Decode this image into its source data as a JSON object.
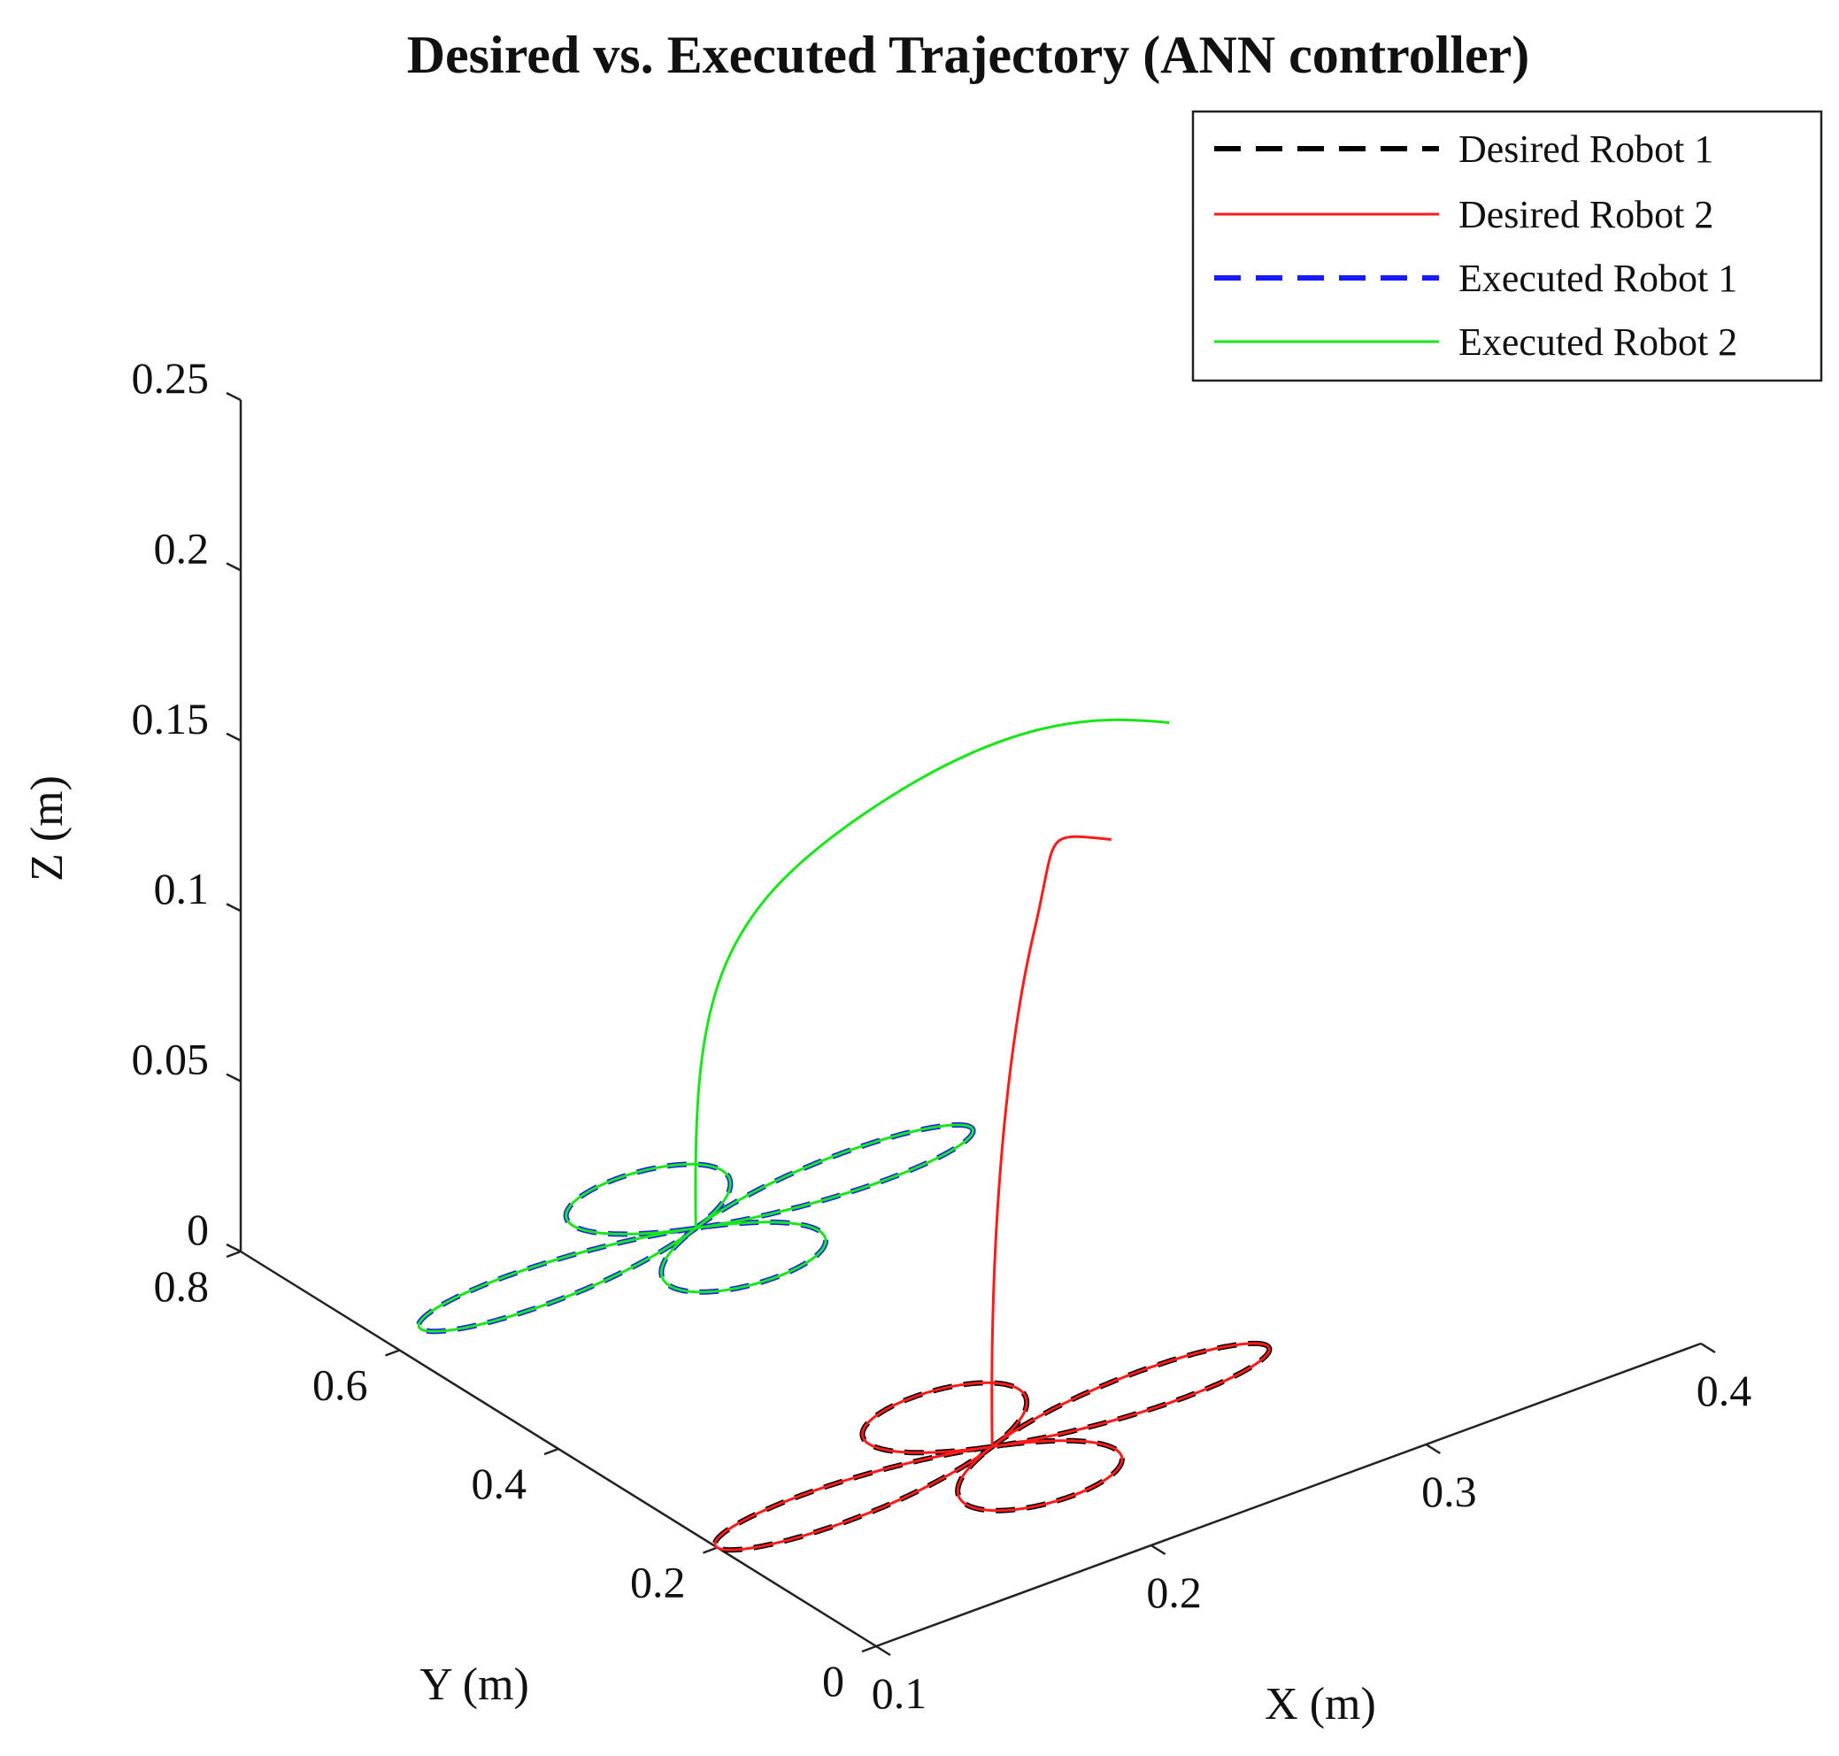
{
  "chart_data": {
    "type": "line3d",
    "title": "Desired vs. Executed Trajectory (ANN controller)",
    "xlabel": "X (m)",
    "ylabel": "Y (m)",
    "zlabel": "Z (m)",
    "xlim": [
      0.1,
      0.4
    ],
    "ylim": [
      0,
      0.8
    ],
    "zlim": [
      0,
      0.25
    ],
    "x_ticks": [
      "0.1",
      "0.2",
      "0.3",
      "0.4"
    ],
    "y_ticks": [
      "0",
      "0.2",
      "0.4",
      "0.6",
      "0.8"
    ],
    "z_ticks": [
      "0",
      "0.05",
      "0.1",
      "0.15",
      "0.2",
      "0.25"
    ],
    "grid": false,
    "legend_position": "top-right",
    "series": [
      {
        "name": "Desired Robot 1",
        "color": "#000000",
        "style": "dashed",
        "center": [
          0.2,
          0.2,
          0.0
        ],
        "petal_radius": 0.1,
        "lift": [
          0.0,
          0.0,
          0.0
        ]
      },
      {
        "name": "Desired Robot 2",
        "color": "#ff1a1a",
        "style": "solid",
        "center": [
          0.2,
          0.2,
          0.0
        ],
        "petal_radius": 0.1,
        "lift": [
          0.2,
          0.05,
          0.2
        ]
      },
      {
        "name": "Executed Robot 1",
        "color": "#1a1aff",
        "style": "dashed",
        "center": [
          0.15,
          0.4,
          0.05
        ],
        "petal_radius": 0.1,
        "lift": [
          0.0,
          0.0,
          0.0
        ]
      },
      {
        "name": "Executed Robot 2",
        "color": "#19e619",
        "style": "solid",
        "center": [
          0.15,
          0.4,
          0.05
        ],
        "petal_radius": 0.1,
        "lift": [
          0.25,
          0.15,
          0.205
        ]
      }
    ]
  }
}
